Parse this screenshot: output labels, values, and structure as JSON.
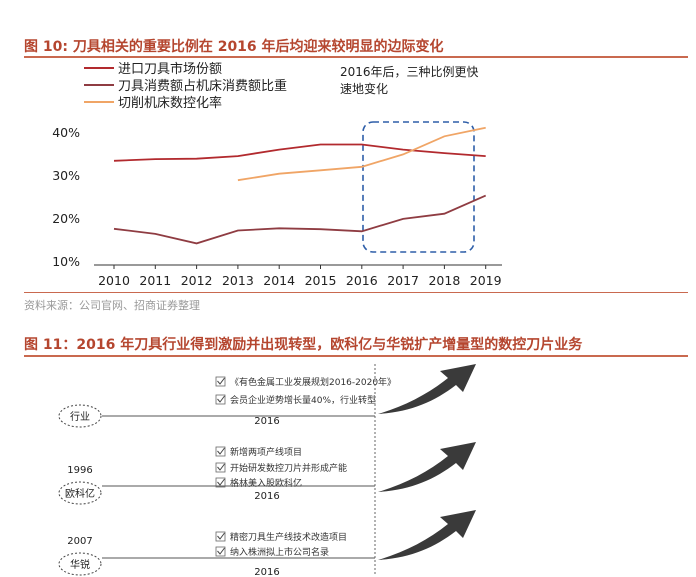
{
  "figure10": {
    "title": "图 10:  刀具相关的重要比例在 2016 年后均迎来较明显的边际变化",
    "source": "资料来源：公司官网、招商证券整理"
  },
  "figure11": {
    "title": "图 11：2016 年刀具行业得到激励并出现转型，欧科亿与华锐扩产增量型的数控刀片业务",
    "rows": [
      {
        "year_left": "",
        "label": "行业",
        "items": [
          "《有色金属工业发展规划2016-2020年》",
          "会员企业逆势增长量40%，行业转型"
        ],
        "year": "2016"
      },
      {
        "year_left": "1996",
        "label": "欧科亿",
        "items": [
          "新增两项产线项目",
          "开始研发数控刀片并形成产能",
          "格林美入股欧科亿"
        ],
        "year": "2016"
      },
      {
        "year_left": "2007",
        "label": "华锐",
        "items": [
          "精密刀具生产线技术改造项目",
          "纳入株洲拟上市公司名录"
        ],
        "year": "2016"
      }
    ]
  },
  "chart_data": {
    "type": "line",
    "title": "",
    "xlabel": "",
    "ylabel": "",
    "x": [
      "2010",
      "2011",
      "2012",
      "2013",
      "2014",
      "2015",
      "2016",
      "2017",
      "2018",
      "2019"
    ],
    "yticks": [
      "40%",
      "30%",
      "20%",
      "10%"
    ],
    "ytick_values": [
      40,
      30,
      20,
      10
    ],
    "ylim": [
      10,
      40
    ],
    "unit": "%",
    "grid": false,
    "legend_position": "top-left",
    "series": [
      {
        "name": "进口刀具市场份额",
        "color": "#b22a2e",
        "values": [
          33.3,
          33.7,
          33.8,
          34.4,
          35.9,
          37.1,
          37.1,
          35.9,
          35.1,
          34.4
        ]
      },
      {
        "name": "刀具消费额占机床消费额比重",
        "color": "#8f3c42",
        "values": [
          17.5,
          16.3,
          14.1,
          17.1,
          17.6,
          17.4,
          16.9,
          19.8,
          21.0,
          25.2
        ]
      },
      {
        "name": "切削机床数控化率",
        "color": "#f0a566",
        "values": [
          null,
          null,
          null,
          28.8,
          30.3,
          31.1,
          31.9,
          34.8,
          39.0,
          41.0
        ]
      }
    ],
    "annotation": "2016年后，三种比例更快速地变化"
  }
}
